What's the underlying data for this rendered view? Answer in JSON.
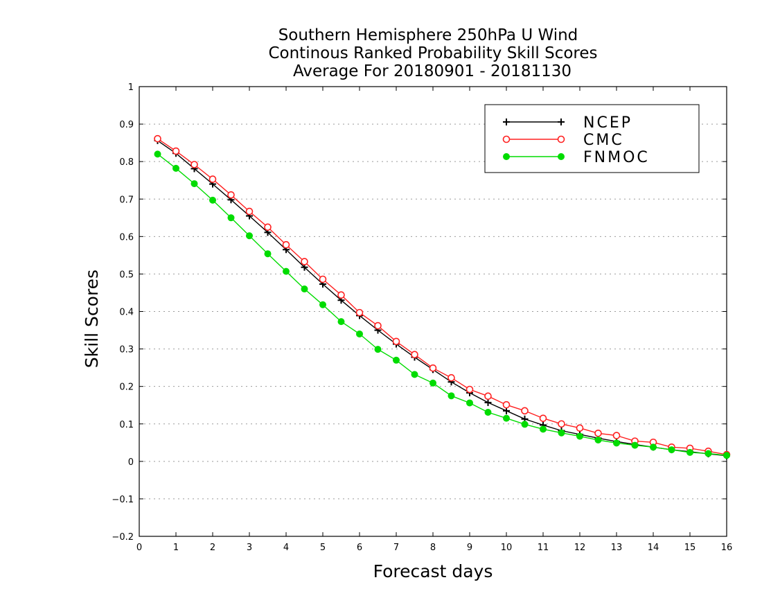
{
  "chart_data": {
    "type": "line",
    "title": [
      "Southern Hemisphere 250hPa U Wind",
      "Continous Ranked Probability Skill Scores",
      "Average For 20180901 - 20181130"
    ],
    "xlabel": "Forecast days",
    "ylabel": "Skill Scores",
    "xlim": [
      0,
      16
    ],
    "ylim": [
      -0.2,
      1
    ],
    "x_ticks": [
      "0",
      "1",
      "2",
      "3",
      "4",
      "5",
      "6",
      "7",
      "8",
      "9",
      "10",
      "11",
      "12",
      "13",
      "14",
      "15",
      "16"
    ],
    "y_ticks": [
      "−0.2",
      "−0.1",
      "0",
      "0.1",
      "0.2",
      "0.3",
      "0.4",
      "0.5",
      "0.6",
      "0.7",
      "0.8",
      "0.9",
      "1"
    ],
    "y_tick_values": [
      -0.2,
      -0.1,
      0,
      0.1,
      0.2,
      0.3,
      0.4,
      0.5,
      0.6,
      0.7,
      0.8,
      0.9,
      1
    ],
    "grid": "horizontal dotted",
    "legend_position": "top-right",
    "x": [
      0.5,
      1,
      1.5,
      2,
      2.5,
      3,
      3.5,
      4,
      4.5,
      5,
      5.5,
      6,
      6.5,
      7,
      7.5,
      8,
      8.5,
      9,
      9.5,
      10,
      10.5,
      11,
      11.5,
      12,
      12.5,
      13,
      13.5,
      14,
      14.5,
      15,
      15.5,
      16
    ],
    "series": [
      {
        "name": "NCEP",
        "color": "#000000",
        "marker": "plus",
        "values": [
          0.856,
          0.822,
          0.781,
          0.74,
          0.698,
          0.655,
          0.611,
          0.565,
          0.518,
          0.473,
          0.43,
          0.389,
          0.35,
          0.313,
          0.278,
          0.245,
          0.212,
          0.183,
          0.157,
          0.135,
          0.113,
          0.097,
          0.082,
          0.072,
          0.062,
          0.053,
          0.045,
          0.038,
          0.031,
          0.026,
          0.02,
          0.015
        ]
      },
      {
        "name": "CMC",
        "color": "#ff2020",
        "marker": "open-circle",
        "values": [
          0.861,
          0.828,
          0.792,
          0.753,
          0.711,
          0.667,
          0.625,
          0.578,
          0.533,
          0.486,
          0.444,
          0.397,
          0.362,
          0.32,
          0.285,
          0.249,
          0.223,
          0.192,
          0.174,
          0.151,
          0.135,
          0.115,
          0.1,
          0.089,
          0.075,
          0.069,
          0.054,
          0.051,
          0.038,
          0.035,
          0.027,
          0.018
        ]
      },
      {
        "name": "FNMOC",
        "color": "#00dc00",
        "marker": "filled-circle",
        "values": [
          0.82,
          0.782,
          0.741,
          0.697,
          0.65,
          0.602,
          0.554,
          0.507,
          0.46,
          0.418,
          0.373,
          0.34,
          0.299,
          0.27,
          0.232,
          0.209,
          0.175,
          0.156,
          0.131,
          0.115,
          0.099,
          0.086,
          0.076,
          0.067,
          0.057,
          0.049,
          0.043,
          0.038,
          0.031,
          0.024,
          0.021,
          0.016
        ]
      }
    ]
  }
}
